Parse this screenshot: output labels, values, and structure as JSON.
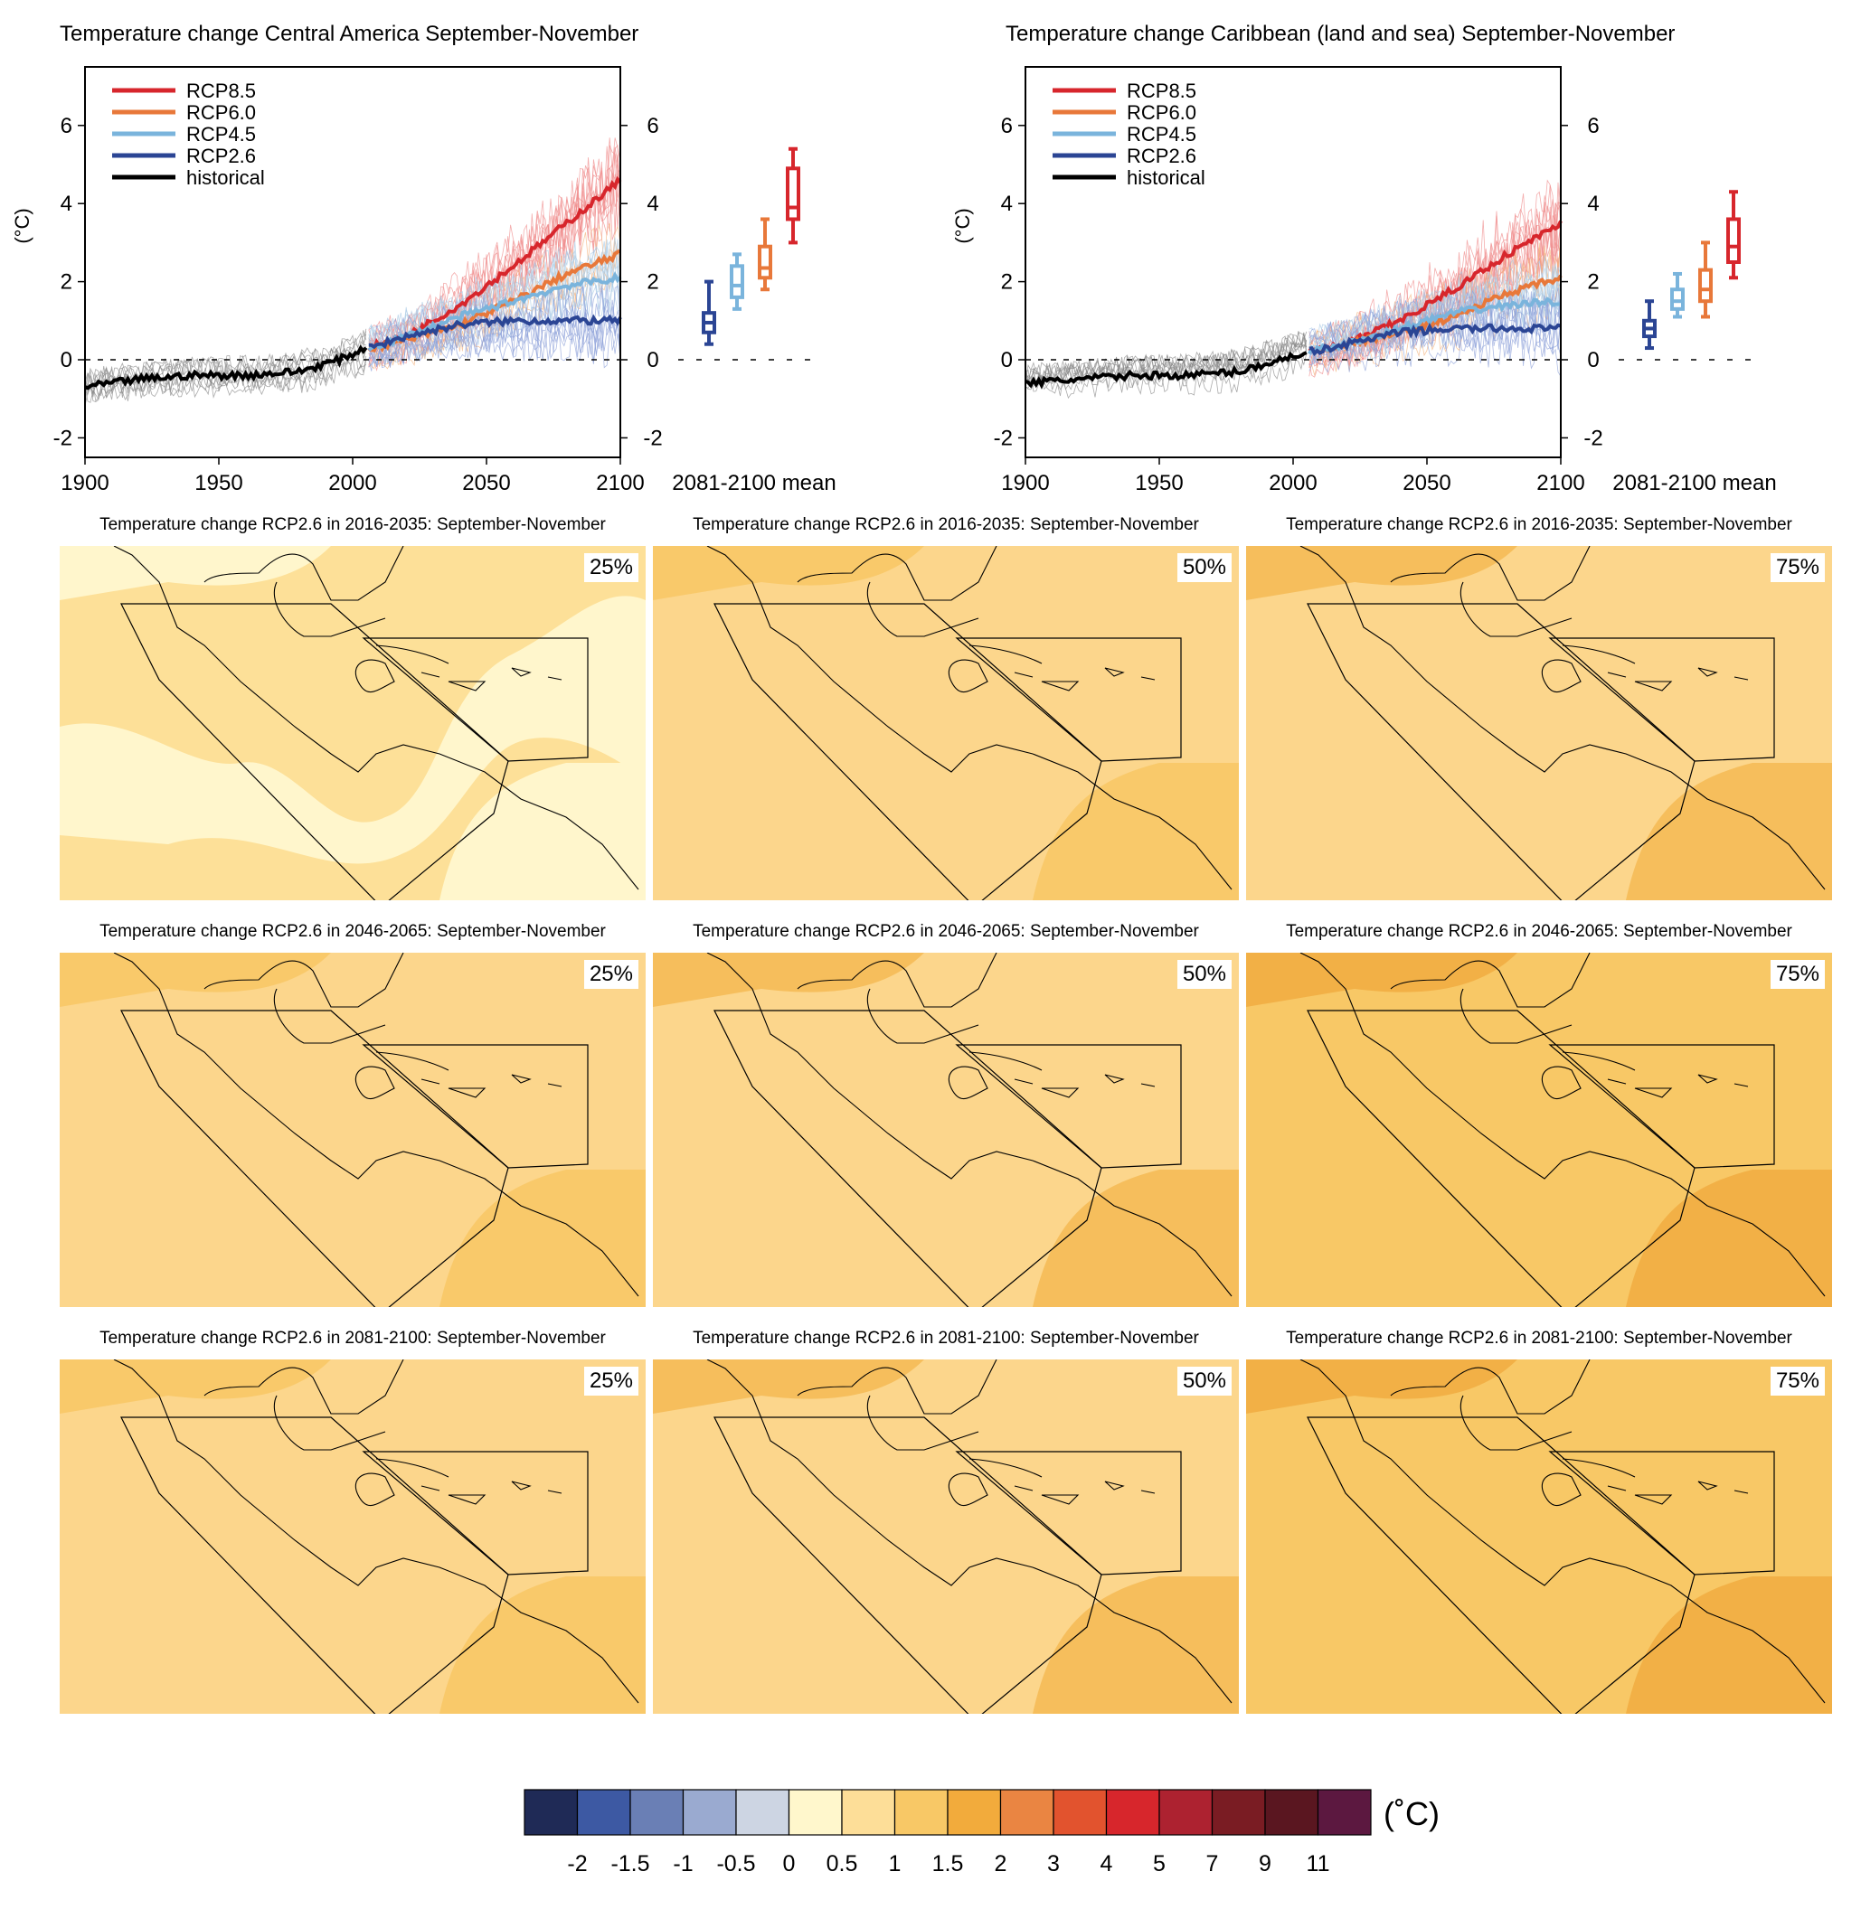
{
  "chart_data": [
    {
      "type": "line",
      "title": "Temperature change Central America September-November",
      "ylabel": "(°C)",
      "xlim": [
        1900,
        2100
      ],
      "ylim": [
        -2.5,
        7.5
      ],
      "xticks": [
        1900,
        1950,
        2000,
        2050,
        2100
      ],
      "yticks": [
        -2,
        0,
        2,
        4,
        6
      ],
      "legend_position": "top-left",
      "series": [
        {
          "name": "RCP8.5",
          "color": "#d7262c",
          "x": [
            2006,
            2020,
            2040,
            2060,
            2080,
            2100
          ],
          "values": [
            0.3,
            0.6,
            1.4,
            2.4,
            3.5,
            4.6
          ]
        },
        {
          "name": "RCP6.0",
          "color": "#e8783a",
          "x": [
            2006,
            2020,
            2040,
            2060,
            2080,
            2100
          ],
          "values": [
            0.3,
            0.5,
            0.9,
            1.5,
            2.2,
            2.7
          ]
        },
        {
          "name": "RCP4.5",
          "color": "#7ab4dc",
          "x": [
            2006,
            2020,
            2040,
            2060,
            2080,
            2100
          ],
          "values": [
            0.3,
            0.6,
            1.1,
            1.5,
            1.9,
            2.1
          ]
        },
        {
          "name": "RCP2.6",
          "color": "#2b4594",
          "x": [
            2006,
            2020,
            2040,
            2060,
            2080,
            2100
          ],
          "values": [
            0.3,
            0.6,
            0.9,
            1.0,
            1.0,
            1.0
          ]
        },
        {
          "name": "historical",
          "color": "#000000",
          "x": [
            1900,
            1920,
            1940,
            1960,
            1980,
            1995,
            2005
          ],
          "values": [
            -0.7,
            -0.5,
            -0.4,
            -0.4,
            -0.3,
            0.0,
            0.3
          ]
        }
      ],
      "boxplots": {
        "label": "2081-2100 mean",
        "items": [
          {
            "name": "RCP2.6",
            "color": "#2b4594",
            "min": 0.4,
            "q1": 0.7,
            "median": 0.95,
            "q3": 1.2,
            "max": 2.0
          },
          {
            "name": "RCP4.5",
            "color": "#7ab4dc",
            "min": 1.3,
            "q1": 1.6,
            "median": 1.9,
            "q3": 2.4,
            "max": 2.7
          },
          {
            "name": "RCP6.0",
            "color": "#e8783a",
            "min": 1.8,
            "q1": 2.1,
            "median": 2.35,
            "q3": 2.9,
            "max": 3.6
          },
          {
            "name": "RCP8.5",
            "color": "#d7262c",
            "min": 3.0,
            "q1": 3.6,
            "median": 3.9,
            "q3": 4.9,
            "max": 5.4
          }
        ]
      }
    },
    {
      "type": "line",
      "title": "Temperature change Caribbean (land and sea) September-November",
      "ylabel": "(°C)",
      "xlim": [
        1900,
        2100
      ],
      "ylim": [
        -2.5,
        7.5
      ],
      "xticks": [
        1900,
        1950,
        2000,
        2050,
        2100
      ],
      "yticks": [
        -2,
        0,
        2,
        4,
        6
      ],
      "legend_position": "top-left",
      "series": [
        {
          "name": "RCP8.5",
          "color": "#d7262c",
          "x": [
            2006,
            2020,
            2040,
            2060,
            2080,
            2100
          ],
          "values": [
            0.2,
            0.4,
            1.0,
            1.8,
            2.7,
            3.5
          ]
        },
        {
          "name": "RCP6.0",
          "color": "#e8783a",
          "x": [
            2006,
            2020,
            2040,
            2060,
            2080,
            2100
          ],
          "values": [
            0.2,
            0.4,
            0.7,
            1.1,
            1.7,
            2.1
          ]
        },
        {
          "name": "RCP4.5",
          "color": "#7ab4dc",
          "x": [
            2006,
            2020,
            2040,
            2060,
            2080,
            2100
          ],
          "values": [
            0.2,
            0.4,
            0.8,
            1.2,
            1.4,
            1.5
          ]
        },
        {
          "name": "RCP2.6",
          "color": "#2b4594",
          "x": [
            2006,
            2020,
            2040,
            2060,
            2080,
            2100
          ],
          "values": [
            0.2,
            0.4,
            0.7,
            0.8,
            0.8,
            0.8
          ]
        },
        {
          "name": "historical",
          "color": "#000000",
          "x": [
            1900,
            1920,
            1940,
            1960,
            1980,
            1995,
            2005
          ],
          "values": [
            -0.6,
            -0.5,
            -0.4,
            -0.4,
            -0.3,
            0.0,
            0.2
          ]
        }
      ],
      "boxplots": {
        "label": "2081-2100 mean",
        "items": [
          {
            "name": "RCP2.6",
            "color": "#2b4594",
            "min": 0.3,
            "q1": 0.6,
            "median": 0.8,
            "q3": 1.0,
            "max": 1.5
          },
          {
            "name": "RCP4.5",
            "color": "#7ab4dc",
            "min": 1.1,
            "q1": 1.3,
            "median": 1.5,
            "q3": 1.8,
            "max": 2.2
          },
          {
            "name": "RCP6.0",
            "color": "#e8783a",
            "min": 1.1,
            "q1": 1.5,
            "median": 1.8,
            "q3": 2.3,
            "max": 3.0
          },
          {
            "name": "RCP8.5",
            "color": "#d7262c",
            "min": 2.1,
            "q1": 2.5,
            "median": 2.9,
            "q3": 3.6,
            "max": 4.3
          }
        ]
      }
    },
    {
      "type": "heatmap",
      "maps": [
        {
          "title": "Temperature change RCP2.6 in 2016-2035: September-November",
          "percentile": "25%",
          "base": "#fde098",
          "patch": "#fff6cc"
        },
        {
          "title": "Temperature change RCP2.6 in 2016-2035: September-November",
          "percentile": "50%",
          "base": "#fcd68c",
          "patch": "#f9c96a"
        },
        {
          "title": "Temperature change RCP2.6 in 2016-2035: September-November",
          "percentile": "75%",
          "base": "#fcd68c",
          "patch": "#f6be5c"
        },
        {
          "title": "Temperature change RCP2.6 in 2046-2065: September-November",
          "percentile": "25%",
          "base": "#fcd68c",
          "patch": "#f9c96a"
        },
        {
          "title": "Temperature change RCP2.6 in 2046-2065: September-November",
          "percentile": "50%",
          "base": "#fcd68c",
          "patch": "#f6be5c"
        },
        {
          "title": "Temperature change RCP2.6 in 2046-2065: September-November",
          "percentile": "75%",
          "base": "#f8c866",
          "patch": "#f2b046"
        },
        {
          "title": "Temperature change RCP2.6 in 2081-2100: September-November",
          "percentile": "25%",
          "base": "#fcd68c",
          "patch": "#f9c96a"
        },
        {
          "title": "Temperature change RCP2.6 in 2081-2100: September-November",
          "percentile": "50%",
          "base": "#fcd68c",
          "patch": "#f6be5c"
        },
        {
          "title": "Temperature change RCP2.6 in 2081-2100: September-November",
          "percentile": "75%",
          "base": "#f8c866",
          "patch": "#f2b046"
        }
      ]
    }
  ],
  "colorbar": {
    "unit": "(˚C)",
    "labels": [
      "-2",
      "-1.5",
      "-1",
      "-0.5",
      "0",
      "0.5",
      "1",
      "1.5",
      "2",
      "3",
      "4",
      "5",
      "7",
      "9",
      "11"
    ],
    "colors": [
      "#1f2a56",
      "#3d59a3",
      "#6a7fb5",
      "#9aaad0",
      "#cdd5e3",
      "#fff7cc",
      "#fdde98",
      "#f8c866",
      "#f2ab3c",
      "#ea8542",
      "#e2532e",
      "#d7262c",
      "#ad2230",
      "#7a1c23",
      "#5a1620",
      "#5c1840"
    ]
  },
  "colors": {
    "ensemble_hist": "#888888",
    "ensemble_rcp85": "#f08a8a",
    "ensemble_rcp26": "#8b9fd8",
    "zero_line": "#000000"
  }
}
